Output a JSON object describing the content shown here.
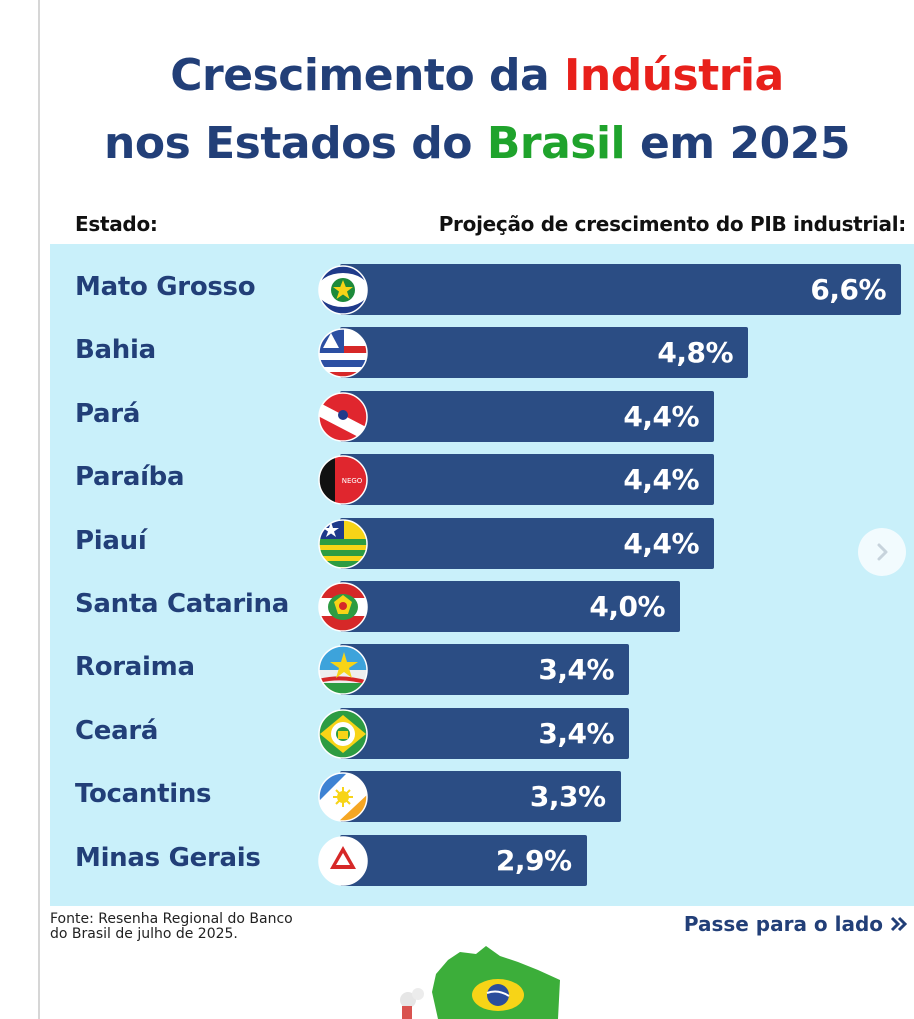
{
  "title": {
    "line1_part1": "Crescimento da ",
    "line1_highlight": "Indústria",
    "line2_part1": "nos Estados do ",
    "line2_highlight": "Brasil",
    "line2_part2": " em 2025"
  },
  "headers": {
    "state": "Estado:",
    "projection": "Projeção de crescimento do PIB industrial:"
  },
  "chart_data": {
    "type": "bar",
    "orientation": "horizontal",
    "title": "Crescimento da Indústria nos Estados do Brasil em 2025",
    "xlabel": "Projeção de crescimento do PIB industrial:",
    "ylabel": "Estado:",
    "unit": "%",
    "xlim": [
      0,
      6.6
    ],
    "categories": [
      "Mato Grosso",
      "Bahia",
      "Pará",
      "Paraíba",
      "Piauí",
      "Santa Catarina",
      "Roraima",
      "Ceará",
      "Tocantins",
      "Minas Gerais"
    ],
    "values": [
      6.6,
      4.8,
      4.4,
      4.4,
      4.4,
      4.0,
      3.4,
      3.4,
      3.3,
      2.9
    ],
    "labels": [
      "6,6%",
      "4,8%",
      "4,4%",
      "4,4%",
      "4,4%",
      "4,0%",
      "3,4%",
      "3,4%",
      "3,3%",
      "2,9%"
    ],
    "flag_icons": [
      "mato-grosso-flag-icon",
      "bahia-flag-icon",
      "para-flag-icon",
      "paraiba-flag-icon",
      "piaui-flag-icon",
      "santa-catarina-flag-icon",
      "roraima-flag-icon",
      "ceara-flag-icon",
      "tocantins-flag-icon",
      "minas-gerais-flag-icon"
    ]
  },
  "flag_texts": {
    "paraiba": "NEGO"
  },
  "source": {
    "line1": "Fonte: Resenha Regional do Banco",
    "line2": "do Brasil de julho de 2025."
  },
  "swipe_hint": "Passe para o lado",
  "colors": {
    "title_blue": "#223f78",
    "accent_red": "#e8201b",
    "accent_green": "#1fa32c",
    "bar": "#2b4d84",
    "panel": "#c9f0fa"
  }
}
